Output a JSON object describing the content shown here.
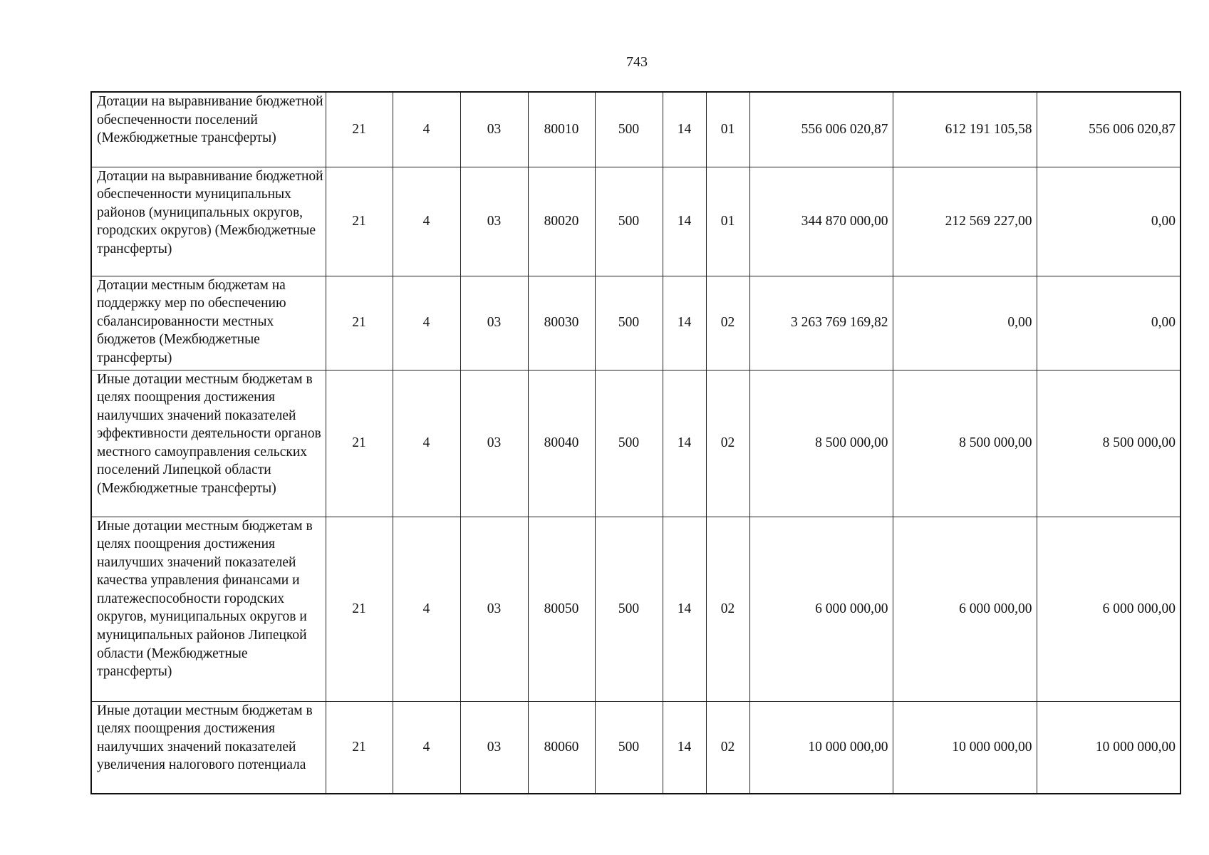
{
  "page_number": "743",
  "rows": [
    {
      "name": "Дотации на выравнивание бюджетной обеспеченности поселений (Межбюджетные трансферты)",
      "codes": [
        "21",
        "4",
        "03",
        "80010",
        "500",
        "14",
        "01"
      ],
      "amounts": [
        "556 006 020,87",
        "612 191 105,58",
        "556 006 020,87"
      ]
    },
    {
      "name": "Дотации на выравнивание бюджетной обеспеченности муниципальных районов (муниципальных округов, городских округов) (Межбюджетные трансферты)",
      "codes": [
        "21",
        "4",
        "03",
        "80020",
        "500",
        "14",
        "01"
      ],
      "amounts": [
        "344 870 000,00",
        "212 569 227,00",
        "0,00"
      ]
    },
    {
      "name": "Дотации местным бюджетам на поддержку мер по обеспечению сбалансированности местных бюджетов (Межбюджетные трансферты)",
      "codes": [
        "21",
        "4",
        "03",
        "80030",
        "500",
        "14",
        "02"
      ],
      "amounts": [
        "3 263 769 169,82",
        "0,00",
        "0,00"
      ]
    },
    {
      "name": "Иные дотации местным бюджетам в целях поощрения достижения наилучших значений показателей эффективности деятельности органов местного самоуправления сельских поселений Липецкой области (Межбюджетные трансферты)",
      "codes": [
        "21",
        "4",
        "03",
        "80040",
        "500",
        "14",
        "02"
      ],
      "amounts": [
        "8 500 000,00",
        "8 500 000,00",
        "8 500 000,00"
      ]
    },
    {
      "name": "Иные дотации местным бюджетам в целях поощрения достижения наилучших значений показателей качества управления финансами и платежеспособности городских округов, муниципальных округов и муниципальных районов Липецкой области (Межбюджетные трансферты)",
      "codes": [
        "21",
        "4",
        "03",
        "80050",
        "500",
        "14",
        "02"
      ],
      "amounts": [
        "6 000 000,00",
        "6 000 000,00",
        "6 000 000,00"
      ]
    },
    {
      "name": "Иные дотации местным бюджетам в целях поощрения достижения наилучших значений показателей увеличения налогового потенциала",
      "codes": [
        "21",
        "4",
        "03",
        "80060",
        "500",
        "14",
        "02"
      ],
      "amounts": [
        "10 000 000,00",
        "10 000 000,00",
        "10 000 000,00"
      ]
    }
  ]
}
